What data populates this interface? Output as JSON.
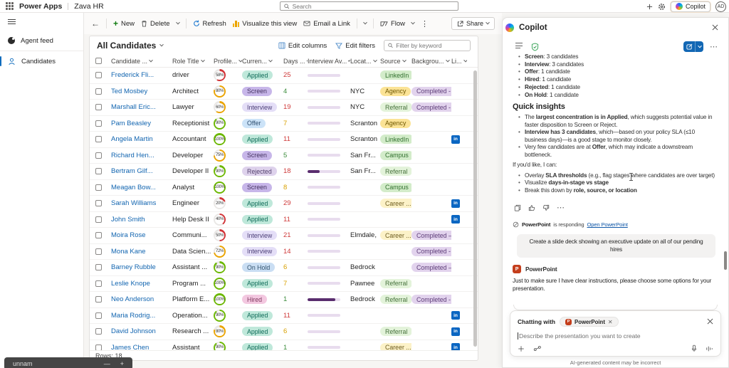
{
  "top_bar": {
    "brand": "Power Apps",
    "app_name": "Zava HR",
    "search_placeholder": "Search",
    "copilot_label": "Copilot",
    "avatar_initials": "AD"
  },
  "sidebar": {
    "items": [
      {
        "label": "Agent feed"
      },
      {
        "label": "Candidates"
      }
    ]
  },
  "toolbar": {
    "new_label": "New",
    "delete_label": "Delete",
    "refresh_label": "Refresh",
    "visualize_label": "Visualize this view",
    "email_label": "Email a Link",
    "flow_label": "Flow",
    "share_label": "Share"
  },
  "view": {
    "title": "All Candidates",
    "edit_columns": "Edit columns",
    "edit_filters": "Edit filters",
    "filter_placeholder": "Filter by keyword",
    "rows_count_label": "Rows: 18"
  },
  "table": {
    "columns": [
      "Candidate ...",
      "Role Title",
      "Profile...",
      "Curren...",
      "Days ...",
      "Interview Av...",
      "Locat...",
      "Source",
      "Backgrou...",
      "Li..."
    ],
    "rows": [
      {
        "name": "Frederick Fli...",
        "role": "driver",
        "profile": 58,
        "ring": "red",
        "stage": "Applied",
        "days": 25,
        "days_color": "red",
        "bar_fill": 0,
        "location": "",
        "source": "LinkedIn",
        "source_style": "green",
        "background": "",
        "linkedin": false
      },
      {
        "name": "Ted Mosbey",
        "role": "Architect",
        "profile": 80,
        "ring": "amber",
        "stage": "Screen",
        "days": 4,
        "days_color": "green",
        "bar_fill": 0,
        "location": "NYC",
        "source": "Agency",
        "source_style": "yellow",
        "background": "Completed - ...",
        "linkedin": false
      },
      {
        "name": "Marshall Eric...",
        "role": "Lawyer",
        "profile": 60,
        "ring": "amber",
        "stage": "Interview",
        "days": 19,
        "days_color": "red",
        "bar_fill": 0,
        "location": "NYC",
        "source": "Referral",
        "source_style": "lightgreen",
        "background": "Completed - ...",
        "linkedin": false
      },
      {
        "name": "Pam Beasley",
        "role": "Receptionist",
        "profile": 90,
        "ring": "green",
        "stage": "Offer",
        "days": 7,
        "days_color": "amber",
        "bar_fill": 0,
        "location": "Scranton",
        "source": "Agency",
        "source_style": "yellow",
        "background": "",
        "linkedin": false
      },
      {
        "name": "Angela Martin",
        "role": "Accountant",
        "profile": 100,
        "ring": "green",
        "stage": "Applied",
        "days": 11,
        "days_color": "red",
        "bar_fill": 0,
        "location": "Scranton",
        "source": "LinkedIn",
        "source_style": "green",
        "background": "",
        "linkedin": true
      },
      {
        "name": "Richard Hen...",
        "role": "Developer",
        "profile": 75,
        "ring": "amber",
        "stage": "Screen",
        "days": 5,
        "days_color": "green",
        "bar_fill": 0,
        "location": "San Fr...",
        "source": "Campus",
        "source_style": "green",
        "background": "",
        "linkedin": false
      },
      {
        "name": "Bertram Gilf...",
        "role": "Developer II",
        "profile": 90,
        "ring": "green",
        "stage": "Rejected",
        "days": 18,
        "days_color": "red",
        "bar_fill": 38,
        "location": "San Fr...",
        "source": "Referral",
        "source_style": "lightgreen",
        "background": "",
        "linkedin": false
      },
      {
        "name": "Meagan Bow...",
        "role": "Analyst",
        "profile": 100,
        "ring": "green",
        "stage": "Screen",
        "days": 8,
        "days_color": "amber",
        "bar_fill": 0,
        "location": "",
        "source": "Campus",
        "source_style": "green",
        "background": "",
        "linkedin": false
      },
      {
        "name": "Sarah Williams",
        "role": "Engineer",
        "profile": 20,
        "ring": "red",
        "stage": "Applied",
        "days": 29,
        "days_color": "red",
        "bar_fill": 0,
        "location": "",
        "source": "Career ...",
        "source_style": "lightyellow",
        "background": "",
        "linkedin": true
      },
      {
        "name": "John Smith",
        "role": "Help Desk II",
        "profile": 40,
        "ring": "red",
        "stage": "Applied",
        "days": 11,
        "days_color": "red",
        "bar_fill": 0,
        "location": "",
        "source": "",
        "source_style": "",
        "background": "",
        "linkedin": true
      },
      {
        "name": "Moira Rose",
        "role": "Communi...",
        "profile": 50,
        "ring": "red",
        "stage": "Interview",
        "days": 21,
        "days_color": "red",
        "bar_fill": 0,
        "location": "Elmdale,",
        "source": "Career ...",
        "source_style": "lightyellow",
        "background": "Completed – ...",
        "linkedin": false
      },
      {
        "name": "Mona Kane",
        "role": "Data Scien...",
        "profile": 72,
        "ring": "amber",
        "stage": "Interview",
        "days": 14,
        "days_color": "red",
        "bar_fill": 0,
        "location": "",
        "source": "",
        "source_style": "",
        "background": "Completed - ...",
        "linkedin": false
      },
      {
        "name": "Barney Rubble",
        "role": "Assistant ...",
        "profile": 90,
        "ring": "green",
        "stage": "On Hold",
        "days": 6,
        "days_color": "amber",
        "bar_fill": 0,
        "location": "Bedrock",
        "source": "",
        "source_style": "",
        "background": "Completed – ...",
        "linkedin": false
      },
      {
        "name": "Leslie Knope",
        "role": "Program ...",
        "profile": 100,
        "ring": "green",
        "stage": "Applied",
        "days": 7,
        "days_color": "amber",
        "bar_fill": 0,
        "location": "Pawnee",
        "source": "Referral",
        "source_style": "lightgreen",
        "background": "",
        "linkedin": false
      },
      {
        "name": "Neo Anderson",
        "role": "Platform E...",
        "profile": 100,
        "ring": "green",
        "stage": "Hired",
        "days": 1,
        "days_color": "green",
        "bar_fill": 85,
        "location": "Bedrock",
        "source": "Referral",
        "source_style": "lightgreen",
        "background": "Completed - ...",
        "linkedin": false
      },
      {
        "name": "Maria Rodrig...",
        "role": "Operation...",
        "profile": 90,
        "ring": "green",
        "stage": "Applied",
        "days": 11,
        "days_color": "red",
        "bar_fill": 0,
        "location": "",
        "source": "",
        "source_style": "",
        "background": "",
        "linkedin": true
      },
      {
        "name": "David Johnson",
        "role": "Research ...",
        "profile": 80,
        "ring": "amber",
        "stage": "Applied",
        "days": 6,
        "days_color": "amber",
        "bar_fill": 0,
        "location": "",
        "source": "Referral",
        "source_style": "lightgreen",
        "background": "",
        "linkedin": true
      },
      {
        "name": "James Chen",
        "role": "Assistant",
        "profile": 90,
        "ring": "green",
        "stage": "Applied",
        "days": 1,
        "days_color": "green",
        "bar_fill": 0,
        "location": "",
        "source": "Career ...",
        "source_style": "lightyellow",
        "background": "",
        "linkedin": true
      }
    ],
    "colors": {
      "ring_red": "#d13438",
      "ring_amber": "#eaa300",
      "ring_green": "#6bb700",
      "bar_track": "#e8dcee",
      "bar_fill": "#5a2d6e"
    }
  },
  "copilot": {
    "title": "Copilot",
    "stage_counts": [
      {
        "label": "Screen",
        "value": "3 candidates"
      },
      {
        "label": "Interview",
        "value": "3 candidates"
      },
      {
        "label": "Offer",
        "value": "1 candidate"
      },
      {
        "label": "Hired",
        "value": "1 candidate"
      },
      {
        "label": "Rejected",
        "value": "1 candidate"
      },
      {
        "label": "On Hold",
        "value": "1 candidate"
      }
    ],
    "quick_insights_title": "Quick insights",
    "insights": [
      "The **largest concentration is in Applied**, which suggests potential value in faster disposition to Screen or Reject.",
      "**Interview has 3 candidates**, which—based on your policy SLA (≤10 business days)—is a good stage to monitor closely.",
      "Very few candidates are at **Offer**, which may indicate a downstream bottleneck."
    ],
    "offer_intro": "If you'd like, I can:",
    "offer_options": [
      "Overlay **SLA thresholds** (e.g., flag stages where candidates are over target)",
      "Visualize **days-in-stage vs stage**",
      "Break this down by **role, source, or location**"
    ],
    "responding": {
      "app": "PowerPoint",
      "text": "is responding",
      "link": "Open PowerPoint"
    },
    "user_message": "Create a slide deck showing an executive update on all of our pending hires",
    "agent_name": "PowerPoint",
    "agent_message": "Just to make sure I have clear instructions, please choose some options for your presentation.",
    "chat": {
      "prefix": "Chatting with",
      "chip": "PowerPoint",
      "placeholder": "Describe the presentation you want to create"
    },
    "disclaimer": "AI-generated content may be incorrect"
  },
  "overlay": {
    "label": "unnam",
    "zoom_out": "—",
    "zoom_in": "+"
  }
}
